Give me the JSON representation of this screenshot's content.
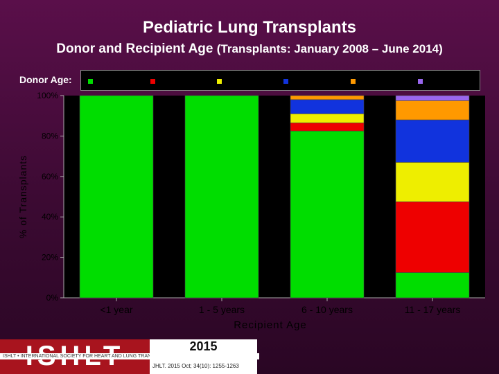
{
  "header": {
    "title": "Pediatric Lung Transplants",
    "subtitle_main": "Donor and Recipient Age",
    "subtitle_sub": "(Transplants: January 2008 – June 2014)"
  },
  "legend": {
    "label": "Donor Age:"
  },
  "footer": {
    "logo": "ISHLT",
    "band": "ISHLT • INTERNATIONAL SOCIETY FOR HEART AND LUNG TRANSPLANTATION",
    "year": "2015",
    "citation": "JHLT. 2015 Oct; 34(10): 1255-1263"
  },
  "colors": {
    "green": "#00dd00",
    "red": "#ee0000",
    "yellow": "#eeee00",
    "blue": "#1133dd",
    "orange": "#ff9900",
    "purple": "#9966ee",
    "plot_bg": "#000000"
  },
  "chart_data": {
    "type": "bar",
    "stacked": true,
    "categories": [
      "<1 year",
      "1 - 5 years",
      "6 - 10 years",
      "11 - 17 years"
    ],
    "xlabel": "Recipient Age",
    "ylabel": "% of Transplants",
    "ylim": [
      0,
      100
    ],
    "yticks": [
      "0%",
      "20%",
      "40%",
      "60%",
      "80%",
      "100%"
    ],
    "legend_position": "top",
    "grid": false,
    "series": [
      {
        "color": "#00dd00",
        "values": [
          100,
          100,
          82.5,
          12.5
        ]
      },
      {
        "color": "#ee0000",
        "values": [
          0,
          0,
          4,
          35
        ]
      },
      {
        "color": "#eeee00",
        "values": [
          0,
          0,
          4.5,
          19.5
        ]
      },
      {
        "color": "#1133dd",
        "values": [
          0,
          0,
          7,
          21
        ]
      },
      {
        "color": "#ff9900",
        "values": [
          0,
          0,
          2,
          9.5
        ]
      },
      {
        "color": "#9966ee",
        "values": [
          0,
          0,
          0,
          2.5
        ]
      }
    ]
  }
}
